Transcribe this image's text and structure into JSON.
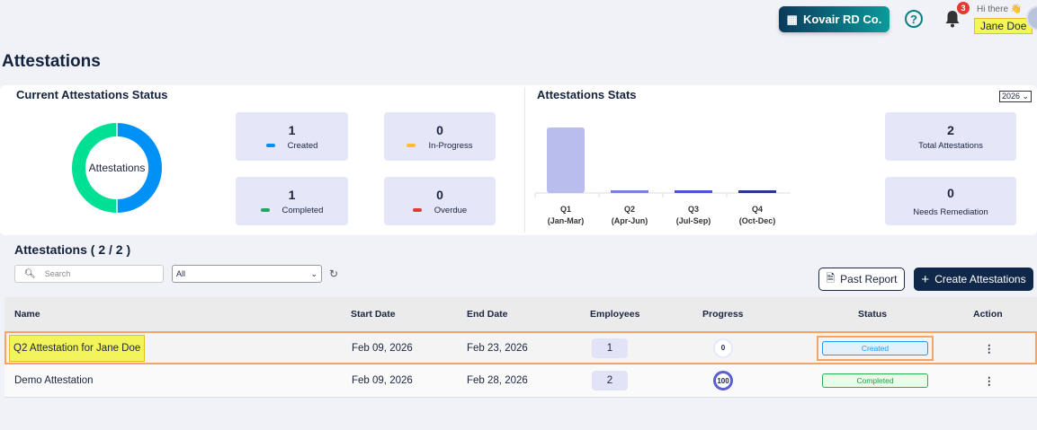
{
  "header": {
    "org_name": "Kovair RD Co.",
    "notification_count": "3",
    "greeting": "Hi there 👋",
    "user_name": "Jane Doe"
  },
  "page_title": "Attestations",
  "status_panel": {
    "title": "Current  Attestations  Status",
    "donut_label": "Attestations",
    "cards": [
      {
        "count": "1",
        "label": "Created",
        "color": "#0091f7"
      },
      {
        "count": "0",
        "label": "In-Progress",
        "color": "#ffbe2e"
      },
      {
        "count": "1",
        "label": "Completed",
        "color": "#27a567"
      },
      {
        "count": "0",
        "label": "Overdue",
        "color": "#e53935"
      }
    ],
    "donut_colors": {
      "created": "#0091f7",
      "completed": "#00e095"
    }
  },
  "stats_panel": {
    "title": "Attestations Stats",
    "year": "2026",
    "total": {
      "count": "2",
      "label": "Total  Attestations"
    },
    "remediation": {
      "count": "0",
      "label": "Needs Remediation"
    }
  },
  "chart_data": {
    "type": "bar",
    "categories": [
      "Q1",
      "Q2",
      "Q3",
      "Q4"
    ],
    "category_sublabels": [
      "(Jan-Mar)",
      "(Apr-Jun)",
      "(Jul-Sep)",
      "(Oct-Dec)"
    ],
    "values": [
      2,
      0,
      0,
      0
    ],
    "colors": [
      "#b9bdee",
      "#7a80e0",
      "#4a52d6",
      "#2c3590"
    ],
    "grid": false
  },
  "list": {
    "title": "Attestations ( 2 / 2 )",
    "search_placeholder": "Search",
    "filter_value": "All",
    "past_report": "Past Report",
    "create": "Create Attestations",
    "columns": [
      "Name",
      "Start Date",
      "End Date",
      "Employees",
      "Progress",
      "Status",
      "Action"
    ],
    "rows": [
      {
        "name": "Q2 Attestation for Jane Doe",
        "start": "Feb 09, 2026",
        "end": "Feb 23, 2026",
        "employees": "1",
        "progress": "0",
        "status": "Created"
      },
      {
        "name": "Demo Attestation",
        "start": "Feb 09, 2026",
        "end": "Feb 28, 2026",
        "employees": "2",
        "progress": "100",
        "status": "Completed"
      }
    ]
  }
}
